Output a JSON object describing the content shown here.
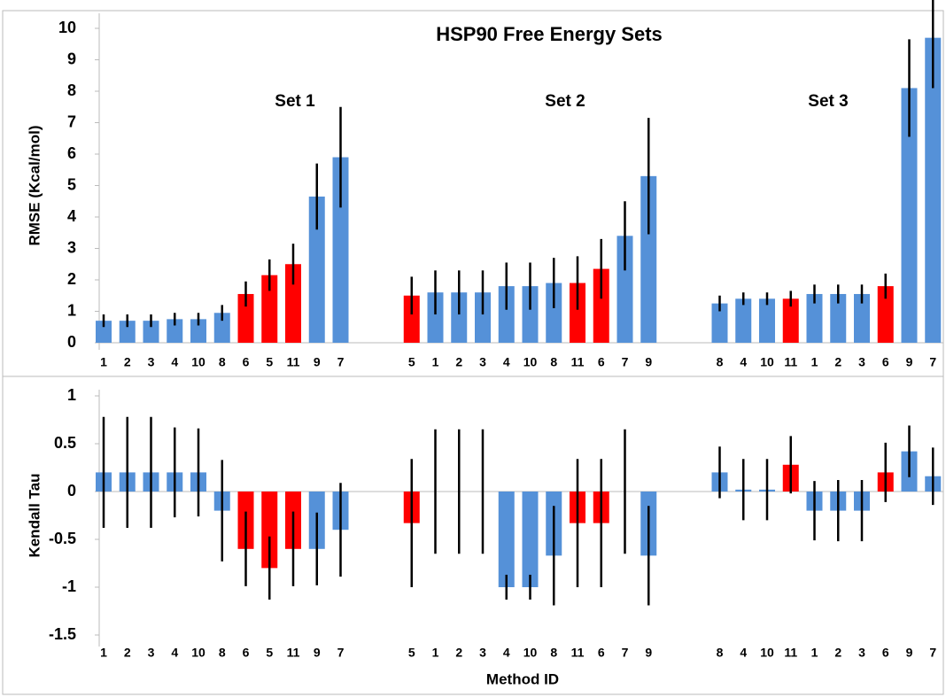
{
  "chart_data": [
    {
      "type": "bar",
      "title": "HSP90 Free Energy Sets",
      "y_label": "RMSE (Kcal/mol)",
      "ylim": [
        0,
        10
      ],
      "yticks": [
        0,
        1,
        2,
        3,
        4,
        5,
        6,
        7,
        8,
        9,
        10
      ],
      "groups": [
        {
          "name": "Set 1",
          "categories": [
            "1",
            "2",
            "3",
            "4",
            "10",
            "8",
            "6",
            "5",
            "11",
            "9",
            "7"
          ],
          "values": [
            0.7,
            0.7,
            0.7,
            0.75,
            0.75,
            0.95,
            1.55,
            2.15,
            2.5,
            4.65,
            5.9
          ],
          "errors": [
            0.2,
            0.2,
            0.2,
            0.2,
            0.2,
            0.25,
            0.4,
            0.5,
            0.65,
            1.05,
            1.6
          ],
          "colors": [
            "#5591d8",
            "#5591d8",
            "#5591d8",
            "#5591d8",
            "#5591d8",
            "#5591d8",
            "#ff0000",
            "#ff0000",
            "#ff0000",
            "#5591d8",
            "#5591d8"
          ]
        },
        {
          "name": "Set 2",
          "categories": [
            "5",
            "1",
            "2",
            "3",
            "4",
            "10",
            "8",
            "11",
            "6",
            "7",
            "9"
          ],
          "values": [
            1.5,
            1.6,
            1.6,
            1.6,
            1.8,
            1.8,
            1.9,
            1.9,
            2.35,
            3.4,
            5.3
          ],
          "errors": [
            0.6,
            0.7,
            0.7,
            0.7,
            0.75,
            0.75,
            0.8,
            0.85,
            0.95,
            1.1,
            1.85
          ],
          "colors": [
            "#ff0000",
            "#5591d8",
            "#5591d8",
            "#5591d8",
            "#5591d8",
            "#5591d8",
            "#5591d8",
            "#ff0000",
            "#ff0000",
            "#5591d8",
            "#5591d8"
          ]
        },
        {
          "name": "Set 3",
          "categories": [
            "8",
            "4",
            "10",
            "11",
            "1",
            "2",
            "3",
            "6",
            "9",
            "7"
          ],
          "values": [
            1.25,
            1.4,
            1.4,
            1.4,
            1.55,
            1.55,
            1.55,
            1.8,
            8.1,
            9.7
          ],
          "errors": [
            0.25,
            0.2,
            0.2,
            0.25,
            0.3,
            0.3,
            0.3,
            0.4,
            1.55,
            1.6
          ],
          "colors": [
            "#5591d8",
            "#5591d8",
            "#5591d8",
            "#ff0000",
            "#5591d8",
            "#5591d8",
            "#5591d8",
            "#ff0000",
            "#5591d8",
            "#5591d8"
          ]
        }
      ]
    },
    {
      "type": "bar",
      "y_label": "Kendall Tau",
      "x_label": "Method ID",
      "ylim": [
        -1.5,
        1
      ],
      "yticks": [
        1,
        0.5,
        0,
        -0.5,
        -1,
        -1.5
      ],
      "groups": [
        {
          "categories": [
            "1",
            "2",
            "3",
            "4",
            "10",
            "8",
            "6",
            "5",
            "11",
            "9",
            "7"
          ],
          "values": [
            0.2,
            0.2,
            0.2,
            0.2,
            0.2,
            -0.2,
            -0.6,
            -0.8,
            -0.6,
            -0.6,
            -0.4
          ],
          "errors": [
            0.58,
            0.58,
            0.58,
            0.47,
            0.46,
            0.53,
            0.39,
            0.33,
            0.39,
            0.38,
            0.49
          ],
          "colors": [
            "#5591d8",
            "#5591d8",
            "#5591d8",
            "#5591d8",
            "#5591d8",
            "#5591d8",
            "#ff0000",
            "#ff0000",
            "#ff0000",
            "#5591d8",
            "#5591d8"
          ]
        },
        {
          "categories": [
            "5",
            "1",
            "2",
            "3",
            "4",
            "10",
            "8",
            "11",
            "6",
            "7",
            "9"
          ],
          "values": [
            -0.33,
            0,
            0,
            0,
            -1,
            -1,
            -0.67,
            -0.33,
            -0.33,
            0,
            -0.67
          ],
          "errors": [
            0.67,
            0.65,
            0.65,
            0.65,
            0.13,
            0.13,
            0.52,
            0.67,
            0.67,
            0.65,
            0.52
          ],
          "colors": [
            "#ff0000",
            "#5591d8",
            "#5591d8",
            "#5591d8",
            "#5591d8",
            "#5591d8",
            "#5591d8",
            "#ff0000",
            "#ff0000",
            "#5591d8",
            "#5591d8"
          ]
        },
        {
          "categories": [
            "8",
            "4",
            "10",
            "11",
            "1",
            "2",
            "3",
            "6",
            "9",
            "7"
          ],
          "values": [
            0.2,
            0.02,
            0.02,
            0.28,
            -0.2,
            -0.2,
            -0.2,
            0.2,
            0.42,
            0.16
          ],
          "errors": [
            0.27,
            0.32,
            0.32,
            0.3,
            0.31,
            0.32,
            0.32,
            0.31,
            0.27,
            0.3
          ],
          "colors": [
            "#5591d8",
            "#5591d8",
            "#5591d8",
            "#ff0000",
            "#5591d8",
            "#5591d8",
            "#5591d8",
            "#ff0000",
            "#5591d8",
            "#5591d8"
          ]
        }
      ]
    }
  ]
}
